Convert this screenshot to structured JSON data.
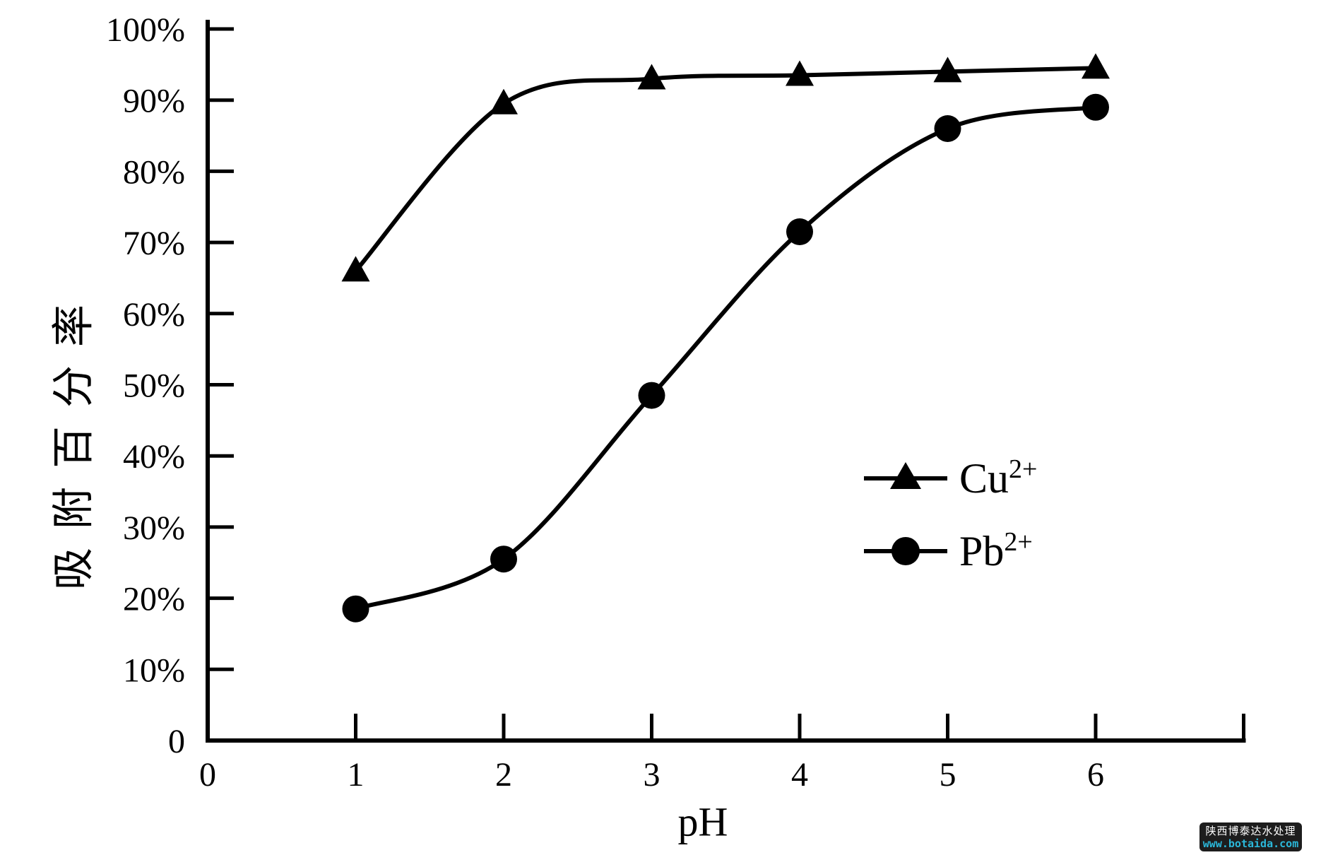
{
  "page": {
    "background": "#ffffff"
  },
  "axis_labels": {
    "x": "pH",
    "y": "吸附百分率"
  },
  "legend": {
    "entries": [
      {
        "base": "Cu",
        "sup": "2+",
        "marker": "triangle"
      },
      {
        "base": "Pb",
        "sup": "2+",
        "marker": "circle"
      }
    ]
  },
  "watermark": {
    "line1": "陕西博泰达水处理",
    "line2": "www.botaida.com",
    "bg_color": "#1d1d1d",
    "line1_color": "#ffffff",
    "line2_color": "#2bb8da"
  },
  "chart_data": {
    "type": "line",
    "title": "",
    "xlabel": "pH",
    "ylabel": "吸附百分率",
    "x": [
      1,
      2,
      3,
      4,
      5,
      6
    ],
    "series": [
      {
        "name": "Cu2+",
        "marker": "triangle",
        "color": "#000000",
        "values_percent": [
          66,
          89.5,
          93,
          93.5,
          94,
          94.5
        ]
      },
      {
        "name": "Pb2+",
        "marker": "circle",
        "color": "#000000",
        "values_percent": [
          18.5,
          25.5,
          48.5,
          71.5,
          86,
          89
        ]
      }
    ],
    "x_ticks": [
      0,
      1,
      2,
      3,
      4,
      5,
      6
    ],
    "x_axis_end_tick": 7,
    "y_ticks": [
      0,
      10,
      20,
      30,
      40,
      50,
      60,
      70,
      80,
      90,
      100
    ],
    "y_tick_labels": [
      "0",
      "10%",
      "20%",
      "30%",
      "40%",
      "50%",
      "60%",
      "70%",
      "80%",
      "90%",
      "100%"
    ],
    "xlim": [
      0,
      7
    ],
    "ylim": [
      0,
      100
    ],
    "grid": false,
    "legend_position": "inside-right",
    "axis_color": "#000000"
  }
}
